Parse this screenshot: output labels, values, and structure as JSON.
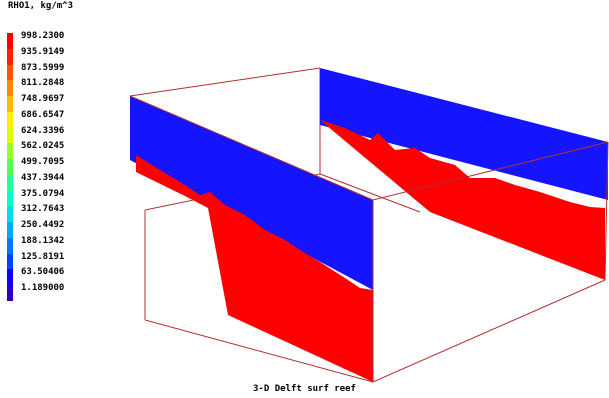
{
  "legend": {
    "title": "RHO1, kg/m^3",
    "entries": [
      {
        "label": "998.2300",
        "color": "#ff0000"
      },
      {
        "label": "935.9149",
        "color": "#ff2200"
      },
      {
        "label": "873.5999",
        "color": "#ff5500"
      },
      {
        "label": "811.2848",
        "color": "#ff8800"
      },
      {
        "label": "748.9697",
        "color": "#ffbb00"
      },
      {
        "label": "686.6547",
        "color": "#ffee00"
      },
      {
        "label": "624.3396",
        "color": "#ddff00"
      },
      {
        "label": "562.0245",
        "color": "#99ff22"
      },
      {
        "label": "499.7095",
        "color": "#55ff55"
      },
      {
        "label": "437.3944",
        "color": "#22ff99"
      },
      {
        "label": "375.0794",
        "color": "#00ffcc"
      },
      {
        "label": "312.7643",
        "color": "#00ddee"
      },
      {
        "label": "250.4492",
        "color": "#00aaff"
      },
      {
        "label": "188.1342",
        "color": "#0077ff"
      },
      {
        "label": "125.8191",
        "color": "#0044ff"
      },
      {
        "label": "63.50406",
        "color": "#1100ff"
      },
      {
        "label": "1.189000",
        "color": "#2a00c8"
      }
    ]
  },
  "scene": {
    "water_color": "#ff0000",
    "air_color": "#1414ff",
    "frame_color": "#b03030"
  },
  "caption": "3-D Delft surf reef"
}
